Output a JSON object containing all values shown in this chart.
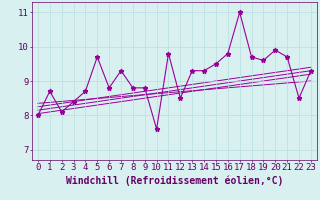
{
  "x": [
    0,
    1,
    2,
    3,
    4,
    5,
    6,
    7,
    8,
    9,
    10,
    11,
    12,
    13,
    14,
    15,
    16,
    17,
    18,
    19,
    20,
    21,
    22,
    23
  ],
  "y_main": [
    8.0,
    8.7,
    8.1,
    8.4,
    8.7,
    9.7,
    8.8,
    9.3,
    8.8,
    8.8,
    7.6,
    9.8,
    8.5,
    9.3,
    9.3,
    9.5,
    9.8,
    11.0,
    9.7,
    9.6,
    9.9,
    9.7,
    8.5,
    9.3
  ],
  "xlim": [
    -0.5,
    23.5
  ],
  "ylim": [
    6.7,
    11.3
  ],
  "yticks": [
    7,
    8,
    9,
    10,
    11
  ],
  "xticks": [
    0,
    1,
    2,
    3,
    4,
    5,
    6,
    7,
    8,
    9,
    10,
    11,
    12,
    13,
    14,
    15,
    16,
    17,
    18,
    19,
    20,
    21,
    22,
    23
  ],
  "xlabel": "Windchill (Refroidissement éolien,°C)",
  "line_color": "#990099",
  "bg_color": "#d8f0f0",
  "grid_color": "#b8dede",
  "tick_color": "#660066",
  "label_color": "#660066",
  "tick_fontsize": 6.5,
  "label_fontsize": 7.0,
  "regression_lines": [
    {
      "start_x": 0,
      "start_y": 8.05,
      "end_x": 23,
      "end_y": 9.2
    },
    {
      "start_x": 0,
      "start_y": 8.15,
      "end_x": 23,
      "end_y": 9.3
    },
    {
      "start_x": 0,
      "start_y": 8.25,
      "end_x": 23,
      "end_y": 9.4
    },
    {
      "start_x": 0,
      "start_y": 8.35,
      "end_x": 23,
      "end_y": 9.0
    }
  ]
}
